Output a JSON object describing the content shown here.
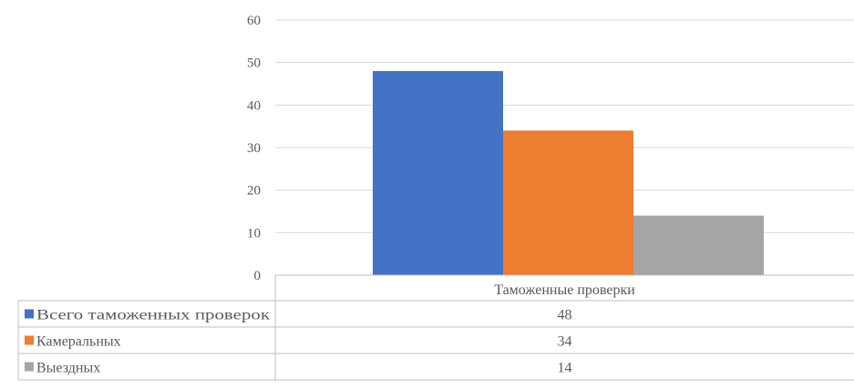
{
  "chart_data": {
    "type": "bar",
    "categories": [
      "Таможенные проверки"
    ],
    "series": [
      {
        "name": "Всего таможенных проверок",
        "values": [
          48
        ],
        "color": "#4472C4"
      },
      {
        "name": "Камеральных",
        "values": [
          34
        ],
        "color": "#ED7D31"
      },
      {
        "name": "Выездных",
        "values": [
          14
        ],
        "color": "#A5A5A5"
      }
    ],
    "ylim": [
      0,
      60
    ],
    "yticks": [
      "0",
      "10",
      "20",
      "30",
      "40",
      "50",
      "60"
    ],
    "grid": true,
    "legend": "data-table-below",
    "data_table": true
  }
}
